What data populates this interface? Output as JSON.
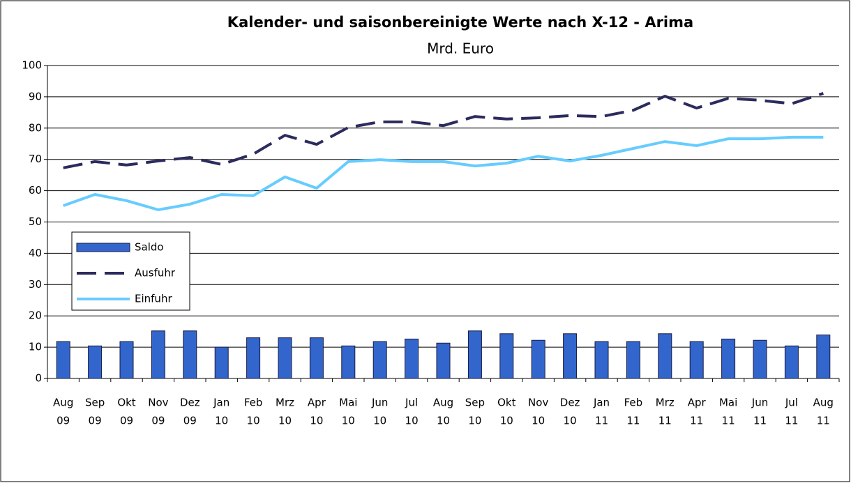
{
  "chart_data": {
    "type": "bar",
    "title": "Kalender- und saisonbereinigte Werte nach X-12 - Arima",
    "subtitle": "Mrd. Euro",
    "categories": [
      [
        "Aug",
        "09"
      ],
      [
        "Sep",
        "09"
      ],
      [
        "Okt",
        "09"
      ],
      [
        "Nov",
        "09"
      ],
      [
        "Dez",
        "09"
      ],
      [
        "Jan",
        "10"
      ],
      [
        "Feb",
        "10"
      ],
      [
        "Mrz",
        "10"
      ],
      [
        "Apr",
        "10"
      ],
      [
        "Mai",
        "10"
      ],
      [
        "Jun",
        "10"
      ],
      [
        "Jul",
        "10"
      ],
      [
        "Aug",
        "10"
      ],
      [
        "Sep",
        "10"
      ],
      [
        "Okt",
        "10"
      ],
      [
        "Nov",
        "10"
      ],
      [
        "Dez",
        "10"
      ],
      [
        "Jan",
        "11"
      ],
      [
        "Feb",
        "11"
      ],
      [
        "Mrz",
        "11"
      ],
      [
        "Apr",
        "11"
      ],
      [
        "Mai",
        "11"
      ],
      [
        "Jun",
        "11"
      ],
      [
        "Jul",
        "11"
      ],
      [
        "Aug",
        "11"
      ]
    ],
    "series": [
      {
        "name": "Saldo",
        "type": "bar",
        "color": "#3366cc",
        "values": [
          11.8,
          10.4,
          11.8,
          15.2,
          15.2,
          10,
          13,
          13,
          13,
          10.4,
          11.8,
          12.6,
          11.3,
          15.2,
          14.3,
          12.2,
          14.3,
          11.8,
          11.8,
          14.3,
          11.8,
          12.6,
          12.2,
          10.4,
          13.9
        ]
      },
      {
        "name": "Ausfuhr",
        "type": "line",
        "dashed": true,
        "color": "#2b2b5e",
        "values": [
          67.3,
          69.3,
          68.2,
          69.5,
          70.6,
          68.4,
          71.7,
          77.7,
          74.8,
          80.2,
          82,
          82,
          80.8,
          83.7,
          82.9,
          83.3,
          84,
          83.7,
          85.7,
          90.2,
          86.4,
          89.5,
          88.9,
          87.8,
          91.1
        ]
      },
      {
        "name": "Einfuhr",
        "type": "line",
        "dashed": false,
        "color": "#66ccff",
        "values": [
          55.2,
          58.8,
          56.8,
          53.9,
          55.7,
          58.8,
          58.4,
          64.4,
          60.8,
          69.3,
          69.9,
          69.3,
          69.3,
          67.9,
          68.8,
          71,
          69.5,
          71.3,
          73.5,
          75.7,
          74.4,
          76.6,
          76.6,
          77.1,
          77.1
        ]
      }
    ],
    "ylim": [
      0,
      100
    ],
    "yticks": [
      0,
      10,
      20,
      30,
      40,
      50,
      60,
      70,
      80,
      90,
      100
    ],
    "grid": true
  }
}
